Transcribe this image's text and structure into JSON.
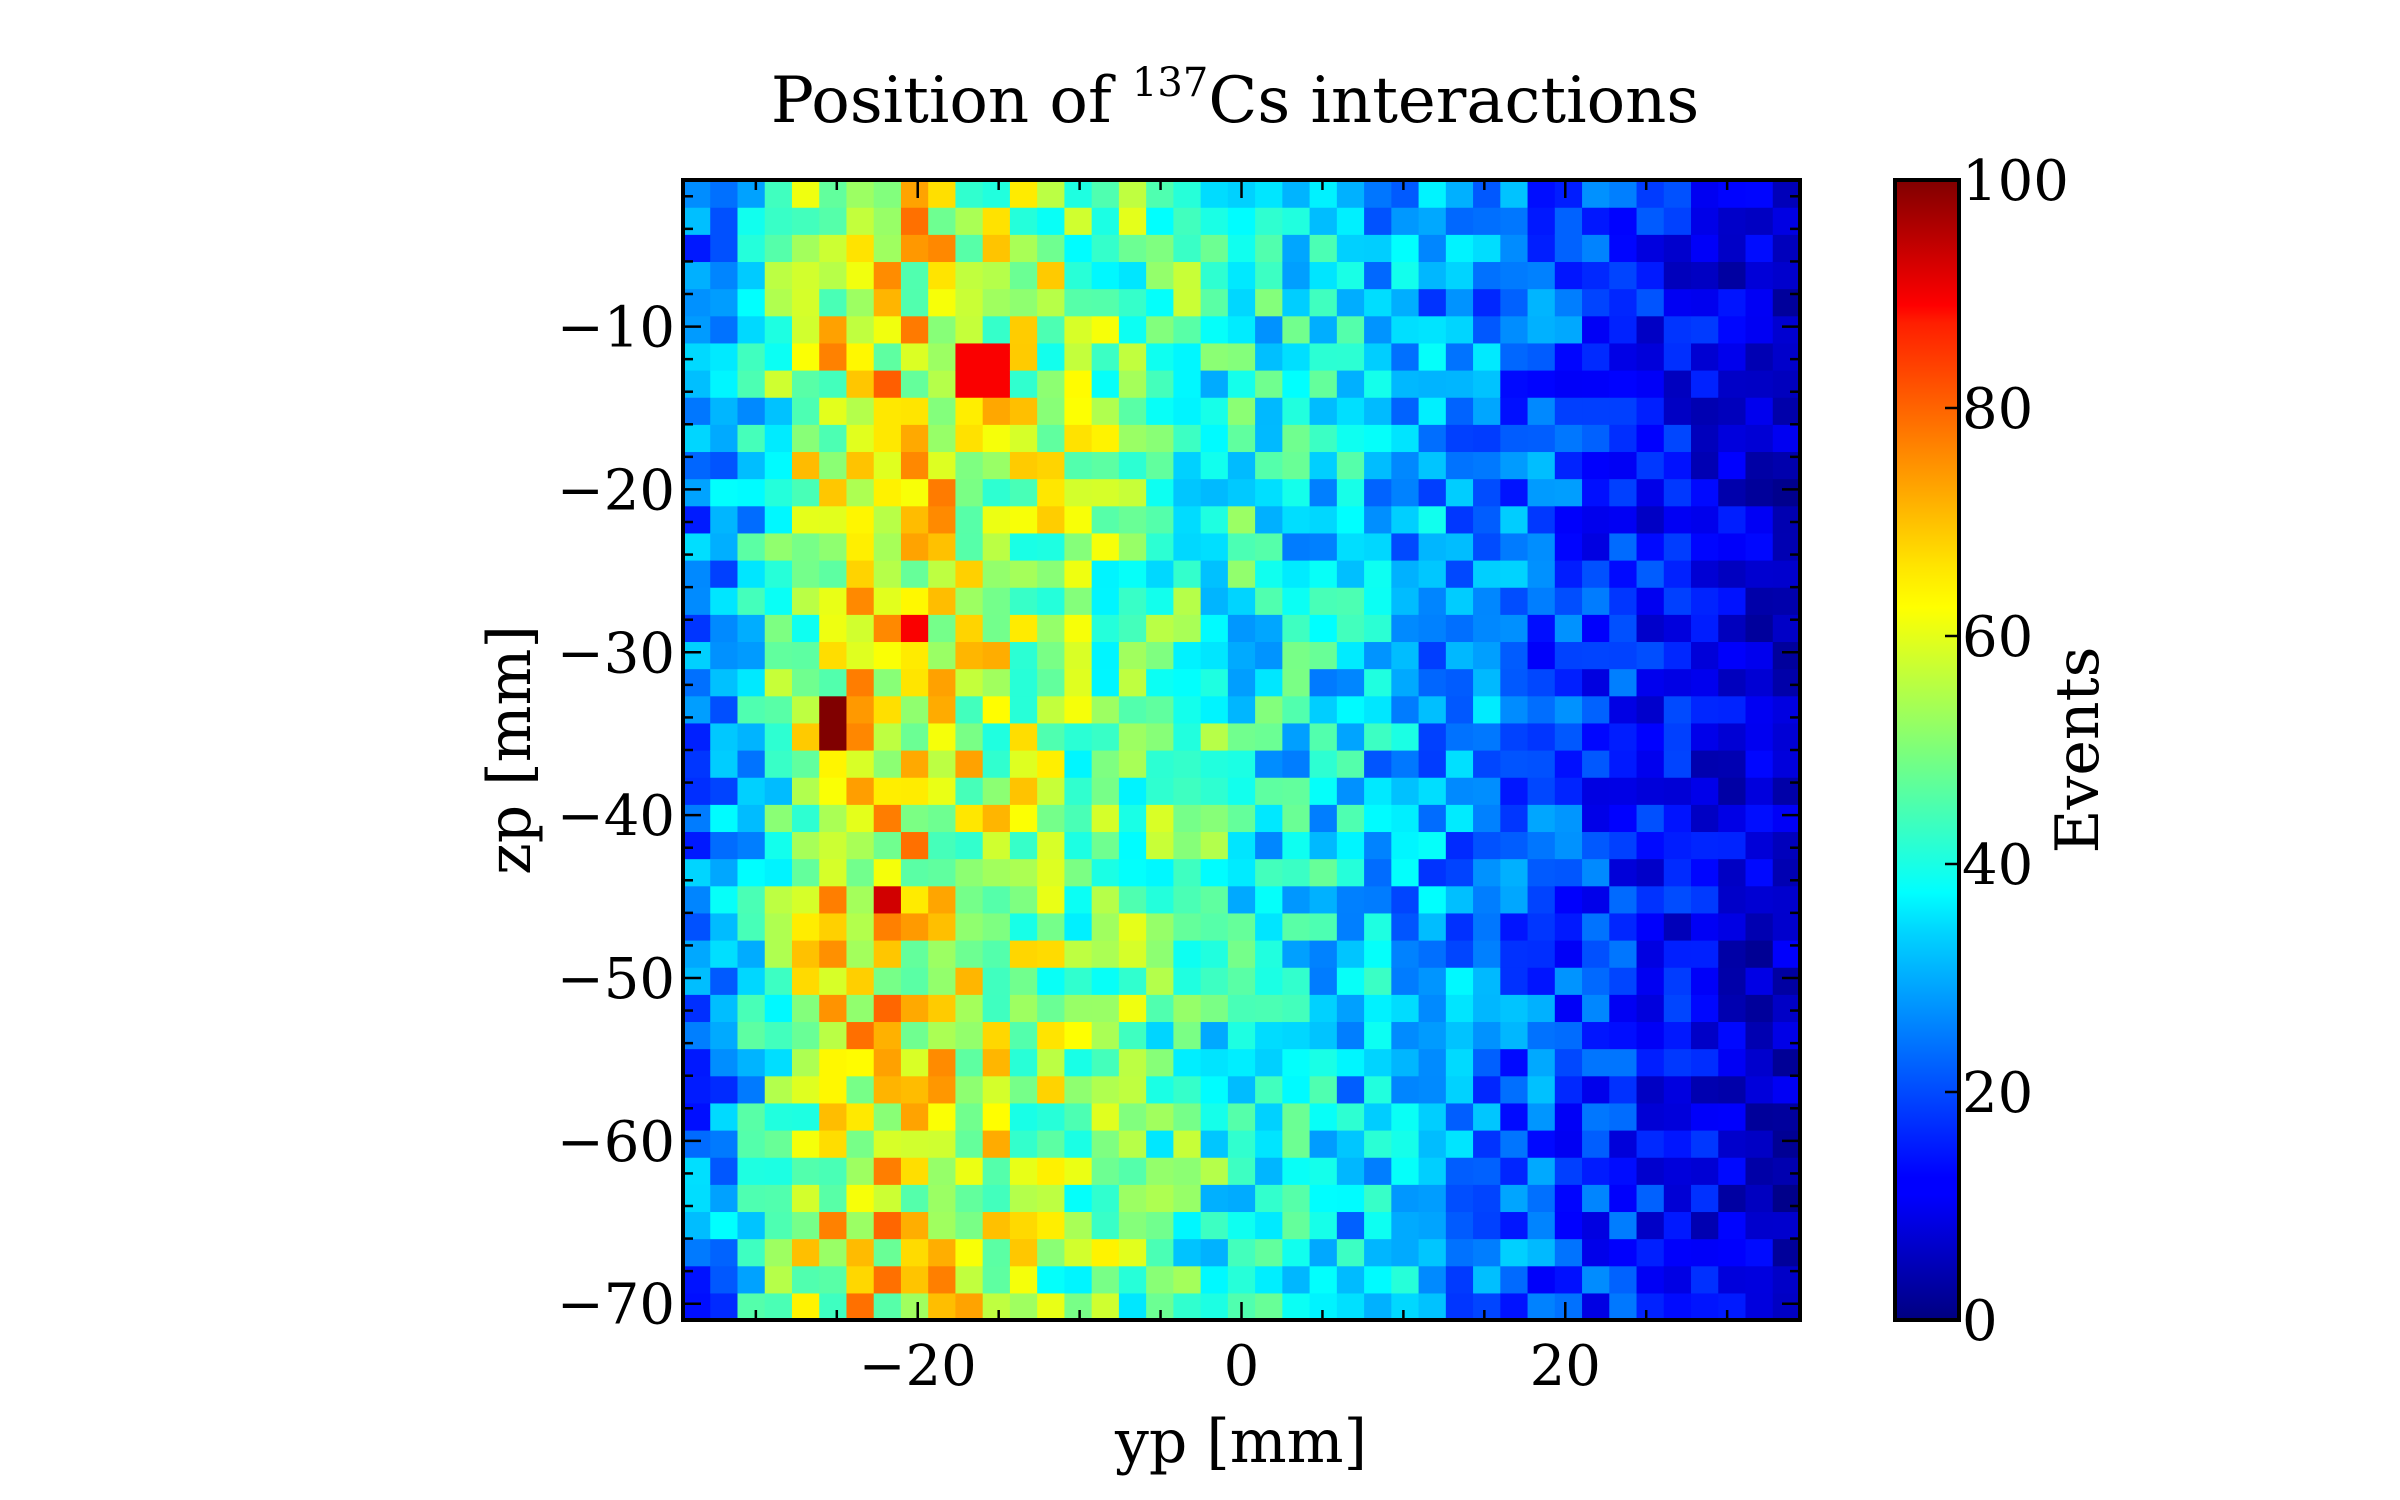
{
  "chart_data": {
    "type": "heatmap",
    "title_prefix": "Position of ",
    "title_sup": "137",
    "title_suffix": "Cs interactions",
    "xlabel": "yp [mm]",
    "ylabel": "zp [mm]",
    "colorbar_label": "Events",
    "xlim": [
      -34.5,
      34.5
    ],
    "ylim": [
      -71,
      -1
    ],
    "x_ticks": [
      -20,
      0,
      20
    ],
    "x_tick_labels": [
      "−20",
      "0",
      "20"
    ],
    "y_ticks": [
      -10,
      -20,
      -30,
      -40,
      -50,
      -60,
      -70
    ],
    "y_tick_labels": [
      "−10",
      "−20",
      "−30",
      "−40",
      "−50",
      "−60",
      "−70"
    ],
    "colorbar_range": [
      0,
      100
    ],
    "colorbar_ticks": [
      0,
      20,
      40,
      60,
      80,
      100
    ],
    "colorbar_tick_labels": [
      "0",
      "20",
      "40",
      "60",
      "80",
      "100"
    ],
    "colormap": "jet",
    "bins_x": 41,
    "bins_y": 42,
    "profile_description": "counts decrease from ~65 at yp=-25 to ~5 at yp=+34",
    "hotspots": [
      {
        "yp": -25,
        "zp": -34.5,
        "value": 100
      },
      {
        "yp": -22,
        "zp": -45.5,
        "value": 92
      },
      {
        "yp": -20,
        "zp": -28.5,
        "value": 88
      },
      {
        "yp": -16,
        "zp": -12.5,
        "value": 88
      }
    ]
  }
}
